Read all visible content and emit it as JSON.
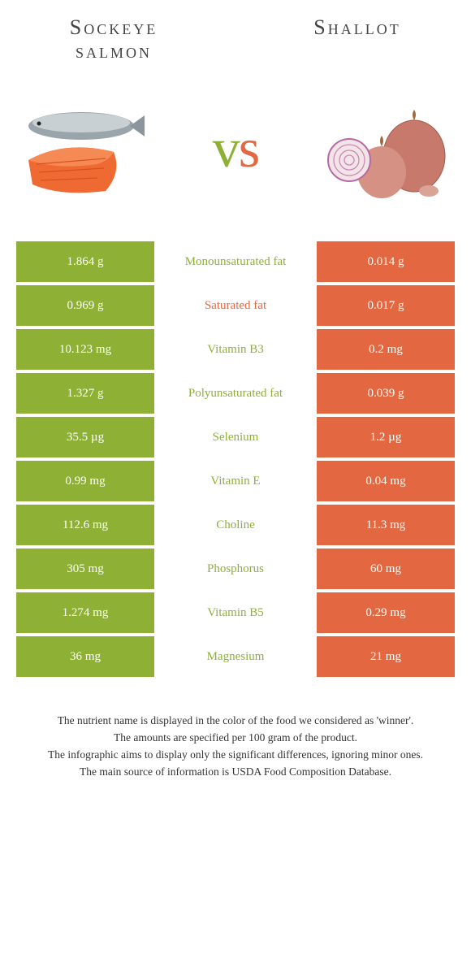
{
  "foods": {
    "left": {
      "name": "Sockeye salmon",
      "color": "#8db035"
    },
    "right": {
      "name": "Shallot",
      "color": "#e36841"
    }
  },
  "vs": "vs",
  "rows": [
    {
      "label": "Monounsaturated fat",
      "left": "1.864 g",
      "right": "0.014 g",
      "winner": "left"
    },
    {
      "label": "Saturated fat",
      "left": "0.969 g",
      "right": "0.017 g",
      "winner": "right"
    },
    {
      "label": "Vitamin B3",
      "left": "10.123 mg",
      "right": "0.2 mg",
      "winner": "left"
    },
    {
      "label": "Polyunsaturated fat",
      "left": "1.327 g",
      "right": "0.039 g",
      "winner": "left"
    },
    {
      "label": "Selenium",
      "left": "35.5 µg",
      "right": "1.2 µg",
      "winner": "left"
    },
    {
      "label": "Vitamin E",
      "left": "0.99 mg",
      "right": "0.04 mg",
      "winner": "left"
    },
    {
      "label": "Choline",
      "left": "112.6 mg",
      "right": "11.3 mg",
      "winner": "left"
    },
    {
      "label": "Phosphorus",
      "left": "305 mg",
      "right": "60 mg",
      "winner": "left"
    },
    {
      "label": "Vitamin B5",
      "left": "1.274 mg",
      "right": "0.29 mg",
      "winner": "left"
    },
    {
      "label": "Magnesium",
      "left": "36 mg",
      "right": "21 mg",
      "winner": "left"
    }
  ],
  "footer": [
    "The nutrient name is displayed in the color of the food we considered as 'winner'.",
    "The amounts are specified per 100 gram of the product.",
    "The infographic aims to display only the significant differences, ignoring minor ones.",
    "The main source of information is USDA Food Composition Database."
  ]
}
